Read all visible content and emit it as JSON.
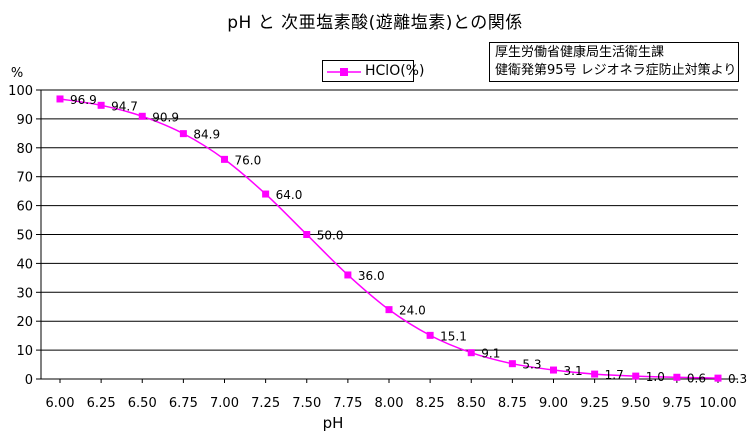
{
  "chart_data": {
    "type": "line",
    "title": "pH と 次亜塩素酸(遊離塩素)との関係",
    "source_note": [
      "厚生労働省健康局生活衛生課",
      "健衛発第95号 レジオネラ症防止対策より"
    ],
    "xlabel": "pH",
    "ylabel": "%",
    "x": [
      6.0,
      6.25,
      6.5,
      6.75,
      7.0,
      7.25,
      7.5,
      7.75,
      8.0,
      8.25,
      8.5,
      8.75,
      9.0,
      9.25,
      9.5,
      9.75,
      10.0
    ],
    "x_tick_labels": [
      "6.00",
      "6.25",
      "6.50",
      "6.75",
      "7.00",
      "7.25",
      "7.50",
      "7.75",
      "8.00",
      "8.25",
      "8.50",
      "8.75",
      "9.00",
      "9.25",
      "9.50",
      "9.75",
      "10.00"
    ],
    "y_ticks": [
      0,
      10,
      20,
      30,
      40,
      50,
      60,
      70,
      80,
      90,
      100
    ],
    "ylim": [
      0,
      100
    ],
    "series": [
      {
        "name": "HClO(%)",
        "values": [
          96.9,
          94.7,
          90.9,
          84.9,
          76.0,
          64.0,
          50.0,
          36.0,
          24.0,
          15.1,
          9.1,
          5.3,
          3.1,
          1.7,
          1.0,
          0.6,
          0.3
        ],
        "data_labels": [
          "96.9",
          "94.7",
          "90.9",
          "84.9",
          "76.0",
          "64.0",
          "50.0",
          "36.0",
          "24.0",
          "15.1",
          "9.1",
          "5.3",
          "3.1",
          "1.7",
          "1.0",
          "0.6",
          "0.3"
        ],
        "color": "#ff00ff",
        "marker": "square"
      }
    ],
    "grid": "horizontal",
    "legend_position": "top-center"
  }
}
